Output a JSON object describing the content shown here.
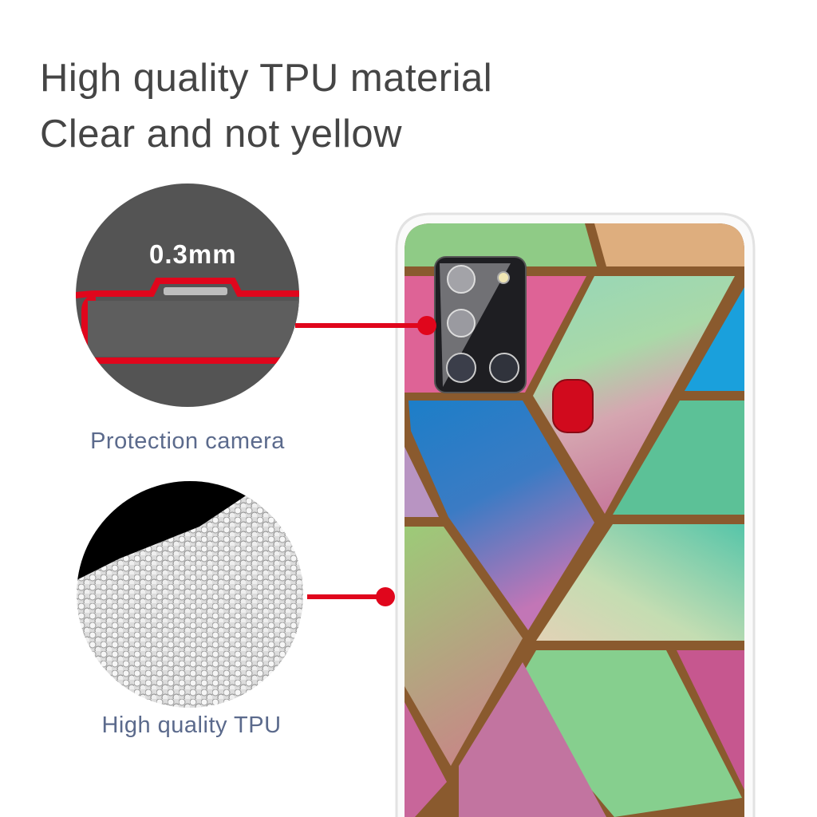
{
  "headline": {
    "line1": "High quality TPU material",
    "line2": "Clear and not yellow"
  },
  "callouts": [
    {
      "measurement": "0.3mm",
      "label": "Protection camera"
    },
    {
      "label": "High quality TPU"
    }
  ],
  "colors": {
    "callout_red": "#d9001b",
    "headline_gray": "#454545",
    "label_blue_gray": "#5b6a8c",
    "pattern_line_bronze": "#8a5a2e"
  }
}
